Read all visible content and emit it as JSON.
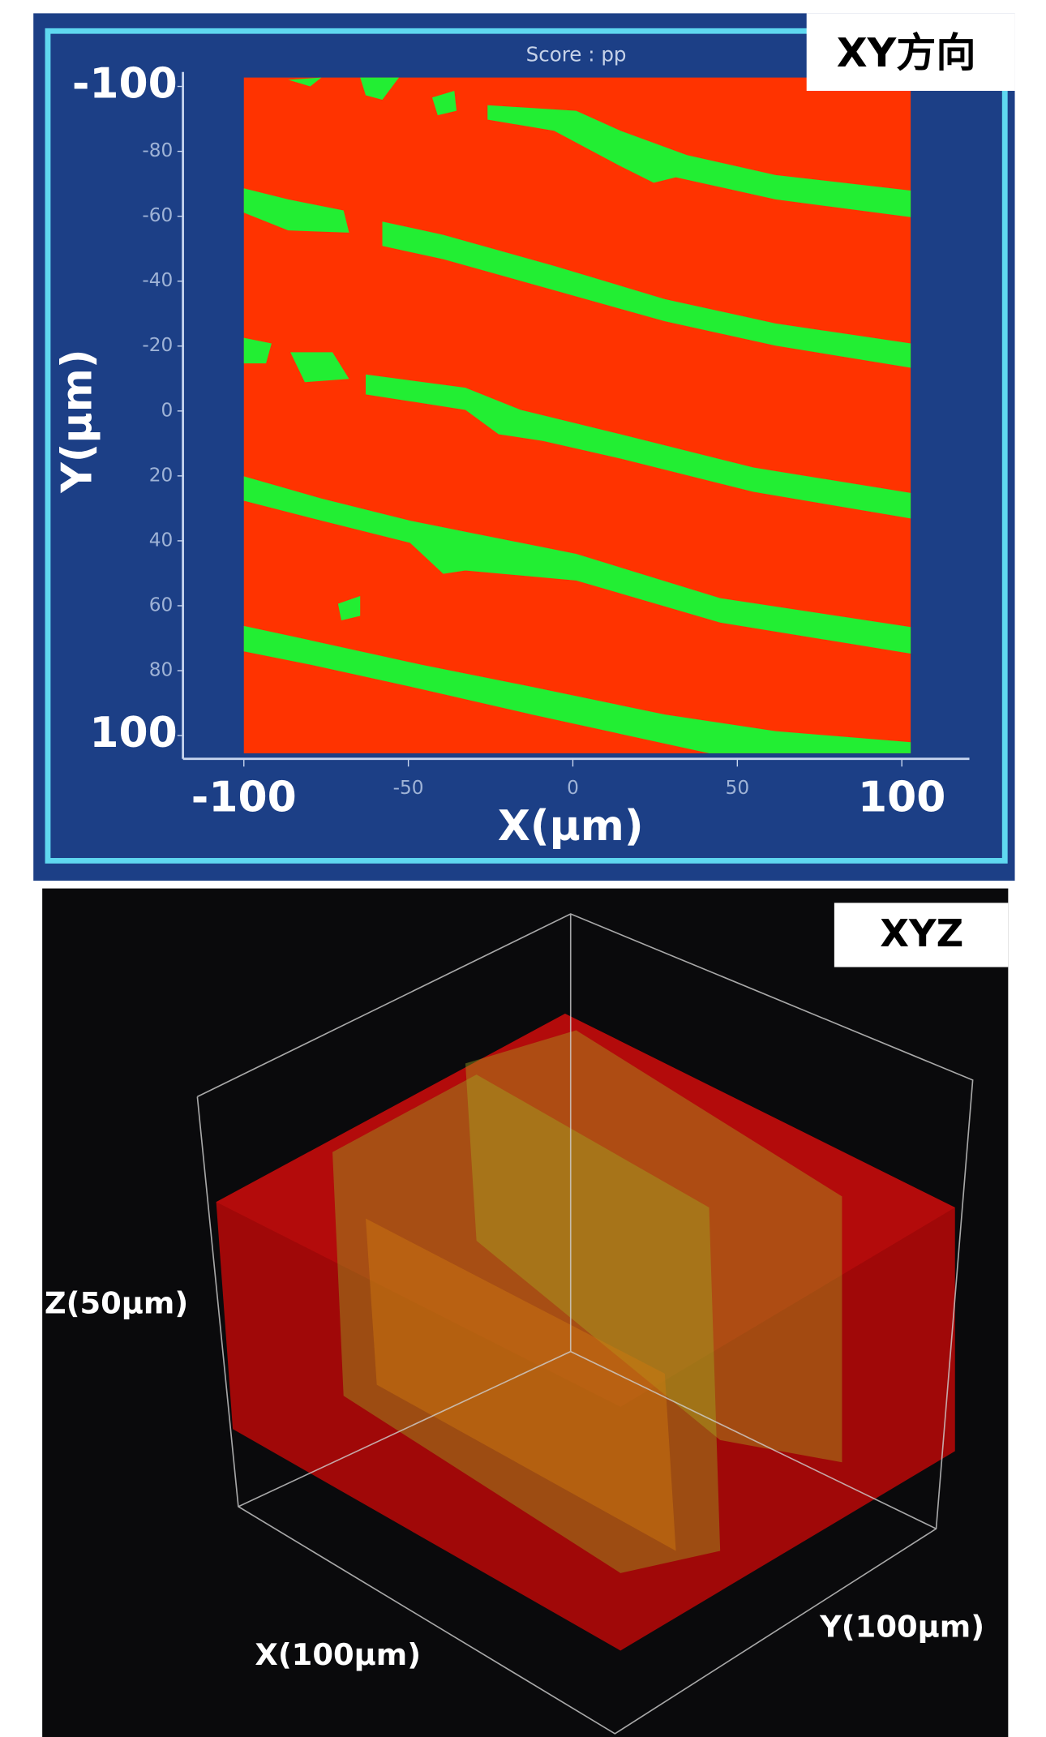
{
  "xy_panel": {
    "label": "XY方向",
    "score": "Score : pp",
    "y_axis_title": "Y(μm)",
    "x_axis_title": "X(μm)",
    "y_ticks": [
      "-100",
      "-80",
      "-60",
      "-40",
      "-20",
      "0",
      "20",
      "40",
      "60",
      "80",
      "100"
    ],
    "x_ticks": [
      "-100",
      "-50",
      "0",
      "50",
      "100"
    ]
  },
  "xyz_panel": {
    "label": "XYZ",
    "z_axis": "Z(50μm)",
    "x_axis": "X(100μm)",
    "y_axis": "Y(100μm)"
  }
}
